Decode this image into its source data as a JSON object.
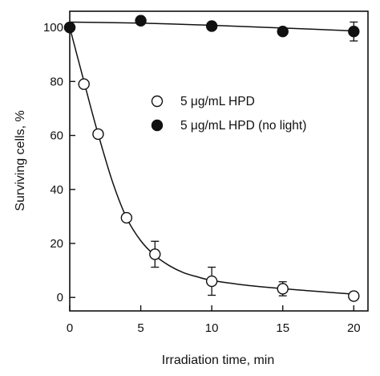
{
  "chart_data": {
    "type": "scatter",
    "xlabel": "Irradiation time, min",
    "ylabel": "Surviving cells, %",
    "xlim": [
      0,
      21
    ],
    "ylim": [
      -5,
      106
    ],
    "xticks": [
      0,
      5,
      10,
      15,
      20
    ],
    "yticks": [
      0,
      20,
      40,
      60,
      80,
      100
    ],
    "grid": false,
    "legend_position": "center-right",
    "series": [
      {
        "name": "5 μg/mL HPD",
        "marker": "open-circle",
        "points": [
          {
            "x": 0,
            "y": 100,
            "err": 0
          },
          {
            "x": 1,
            "y": 79,
            "err": 0
          },
          {
            "x": 2,
            "y": 60.5,
            "err": 0
          },
          {
            "x": 4,
            "y": 29.5,
            "err": 0
          },
          {
            "x": 6,
            "y": 16,
            "err": 4.8
          },
          {
            "x": 10,
            "y": 6,
            "err": 5.2
          },
          {
            "x": 15,
            "y": 3.2,
            "err": 2.6
          },
          {
            "x": 20,
            "y": 0.5,
            "err": 0
          }
        ],
        "curve": [
          [
            0,
            100
          ],
          [
            0.5,
            90
          ],
          [
            1,
            80
          ],
          [
            1.5,
            70
          ],
          [
            2,
            60.5
          ],
          [
            3,
            43
          ],
          [
            4,
            29.5
          ],
          [
            5,
            21
          ],
          [
            6,
            15.5
          ],
          [
            7,
            11.8
          ],
          [
            8,
            9.2
          ],
          [
            9,
            7.6
          ],
          [
            10,
            6.3
          ],
          [
            12,
            4.8
          ],
          [
            14,
            3.7
          ],
          [
            16,
            2.8
          ],
          [
            18,
            2
          ],
          [
            20,
            1.2
          ]
        ]
      },
      {
        "name": "5 μg/mL HPD (no light)",
        "marker": "filled-circle",
        "points": [
          {
            "x": 0,
            "y": 100,
            "err": 0
          },
          {
            "x": 5,
            "y": 102.5,
            "err": 0
          },
          {
            "x": 10,
            "y": 100.5,
            "err": 0
          },
          {
            "x": 15,
            "y": 98.5,
            "err": 0
          },
          {
            "x": 20,
            "y": 98.5,
            "err": 3.5
          }
        ],
        "curve": [
          [
            0,
            102
          ],
          [
            5,
            101.6
          ],
          [
            10,
            100.8
          ],
          [
            15,
            99.8
          ],
          [
            20,
            98.7
          ]
        ]
      }
    ]
  }
}
